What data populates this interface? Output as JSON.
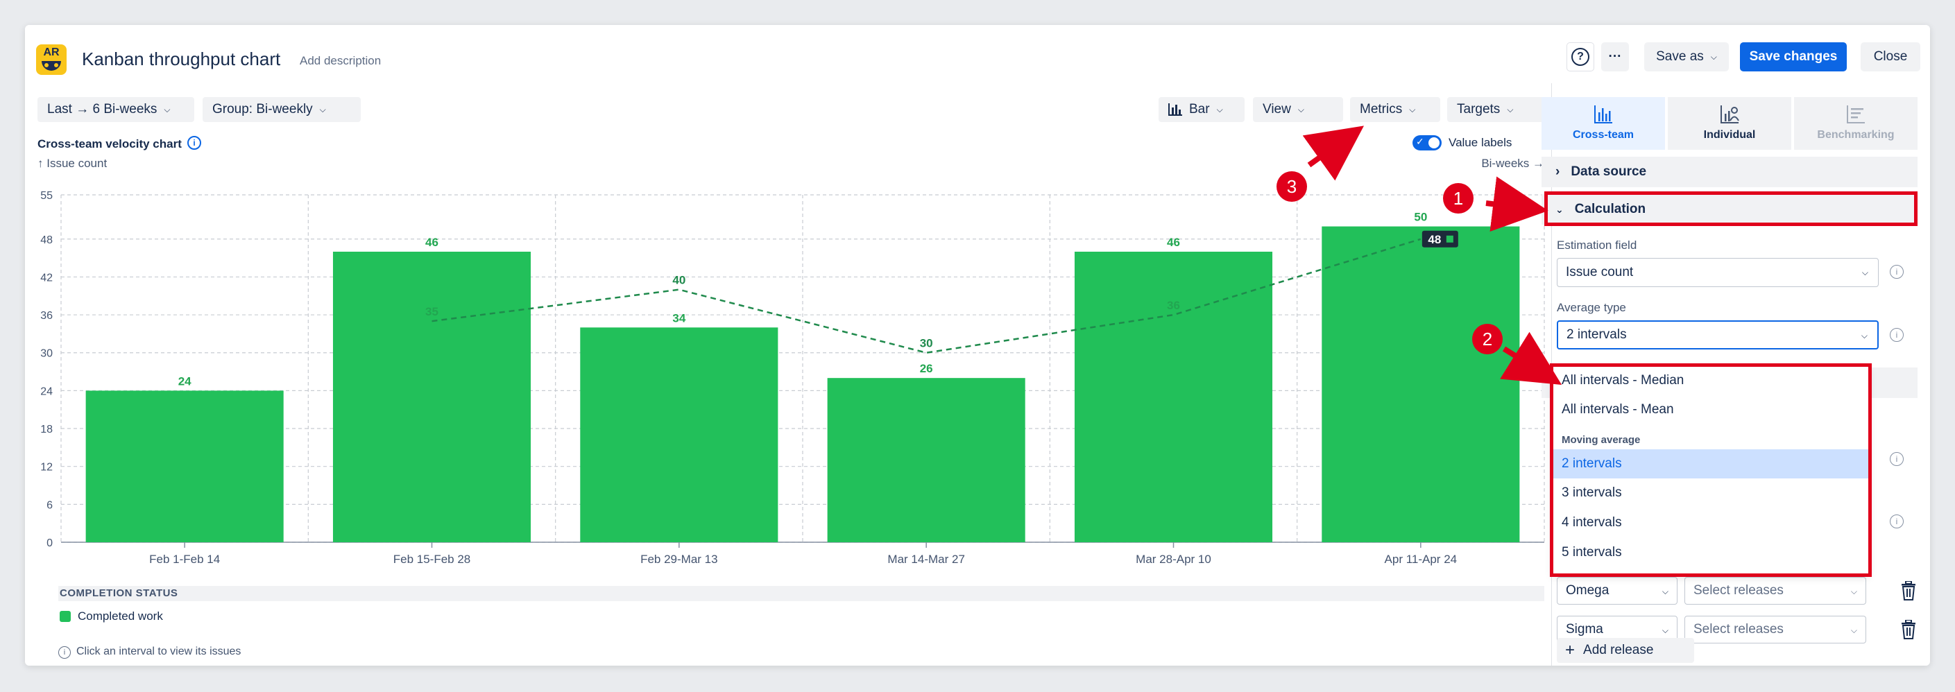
{
  "header": {
    "logo_text": "AR",
    "title": "Kanban throughput chart",
    "add_description": "Add description",
    "help_icon": "?",
    "more_icon": "···",
    "save_as": "Save as",
    "save_changes": "Save changes",
    "close": "Close"
  },
  "toolbar": {
    "range": "Last → 6 Bi-weeks",
    "group": "Group: Bi-weekly",
    "chart_type": "Bar",
    "view": "View",
    "metrics": "Metrics",
    "targets": "Targets"
  },
  "chart_header": {
    "title": "Cross-team velocity chart",
    "y_label": "↑ Issue count",
    "x_label": "Bi-weeks →",
    "value_labels": "Value labels",
    "value_labels_on": true
  },
  "chart_data": {
    "type": "bar",
    "categories": [
      "Feb 1-Feb 14",
      "Feb 15-Feb 28",
      "Feb 29-Mar 13",
      "Mar 14-Mar 27",
      "Mar 28-Apr 10",
      "Apr 11-Apr 24"
    ],
    "series": [
      {
        "name": "Completed work",
        "values": [
          24,
          46,
          34,
          26,
          46,
          50
        ],
        "color": "#22c05a"
      }
    ],
    "moving_average": {
      "values": [
        null,
        35,
        40,
        30,
        36,
        48
      ],
      "color": "#1f8a4c",
      "style": "dashed"
    },
    "highlight_label": "48",
    "y_ticks": [
      0,
      6,
      12,
      18,
      24,
      30,
      36,
      42,
      48,
      55
    ],
    "ylim": [
      0,
      55
    ],
    "grid": true
  },
  "legend": {
    "heading": "COMPLETION STATUS",
    "items": [
      {
        "label": "Completed work",
        "color": "#22c05a"
      }
    ]
  },
  "hint": "Click an interval to view its issues",
  "panel": {
    "tabs": [
      {
        "label": "Cross-team",
        "icon": "bar-chart-icon",
        "state": "active"
      },
      {
        "label": "Individual",
        "icon": "person-chart-icon",
        "state": "normal"
      },
      {
        "label": "Benchmarking",
        "icon": "benchmark-icon",
        "state": "disabled"
      }
    ],
    "data_source": "Data source",
    "calculation": "Calculation",
    "estimation_field_label": "Estimation field",
    "estimation_field_value": "Issue count",
    "average_type_label": "Average type",
    "average_type_value": "2 intervals",
    "dropdown": {
      "top_options": [
        "All intervals - Median",
        "All intervals - Mean"
      ],
      "group_label": "Moving average",
      "group_options": [
        "2 intervals",
        "3 intervals",
        "4 intervals",
        "5 intervals"
      ],
      "selected": "2 intervals"
    },
    "releases": [
      {
        "team": "Omega",
        "placeholder": "Select releases"
      },
      {
        "team": "Sigma",
        "placeholder": "Select releases"
      }
    ],
    "add_release": "Add release"
  },
  "annotations": [
    "1",
    "2",
    "3"
  ]
}
